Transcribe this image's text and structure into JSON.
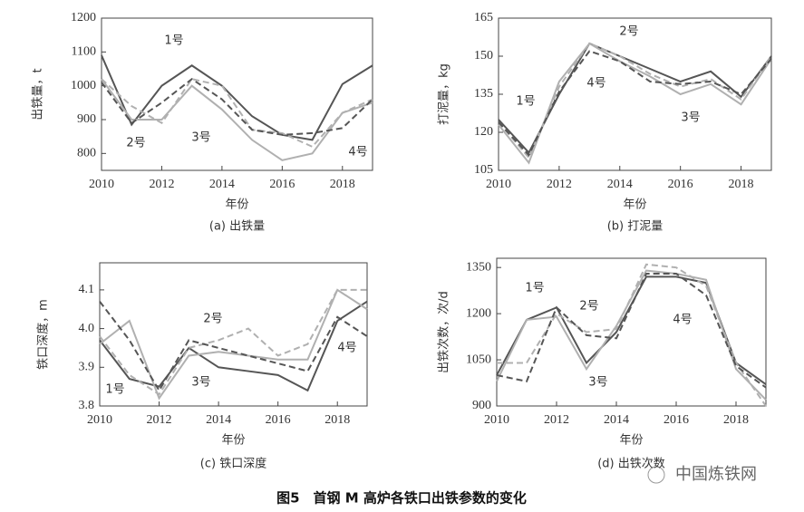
{
  "chart_data": [
    {
      "type": "line",
      "title": "(a) 出铁量",
      "xlabel": "年份",
      "ylabel": "出铁量，t",
      "x": [
        2010,
        2011,
        2012,
        2013,
        2014,
        2015,
        2016,
        2017,
        2018,
        2019
      ],
      "xlim": [
        2010,
        2019
      ],
      "xticks": [
        2010,
        2012,
        2014,
        2016,
        2018
      ],
      "ylim": [
        750,
        1200
      ],
      "yticks": [
        800,
        900,
        1000,
        1100,
        1200
      ],
      "series": [
        {
          "name": "1号",
          "color": "#555555",
          "dashed": false,
          "values": [
            1090,
            885,
            1000,
            1060,
            1000,
            910,
            855,
            840,
            1005,
            1060
          ]
        },
        {
          "name": "2号",
          "color": "#b0b0b0",
          "dashed": true,
          "values": [
            1020,
            940,
            890,
            1020,
            1000,
            870,
            860,
            820,
            920,
            960
          ]
        },
        {
          "name": "3号",
          "color": "#b0b0b0",
          "dashed": false,
          "values": [
            1020,
            900,
            900,
            1000,
            930,
            840,
            780,
            800,
            920,
            950
          ]
        },
        {
          "name": "4号",
          "color": "#555555",
          "dashed": true,
          "values": [
            1010,
            890,
            950,
            1020,
            960,
            870,
            855,
            860,
            875,
            960
          ]
        }
      ]
    },
    {
      "type": "line",
      "title": "(b) 打泥量",
      "xlabel": "年份",
      "ylabel": "打泥量，kg",
      "x": [
        2010,
        2011,
        2012,
        2013,
        2014,
        2015,
        2016,
        2017,
        2018,
        2019
      ],
      "xlim": [
        2010,
        2019
      ],
      "xticks": [
        2010,
        2012,
        2014,
        2016,
        2018
      ],
      "ylim": [
        105,
        165
      ],
      "yticks": [
        105,
        120,
        135,
        150,
        165
      ],
      "series": [
        {
          "name": "1号",
          "color": "#555555",
          "dashed": false,
          "values": [
            125,
            112,
            135,
            155,
            150,
            145,
            140,
            144,
            134,
            150
          ]
        },
        {
          "name": "2号",
          "color": "#b0b0b0",
          "dashed": true,
          "values": [
            124,
            110,
            138,
            155,
            150,
            143,
            138,
            141,
            133,
            150
          ]
        },
        {
          "name": "3号",
          "color": "#b0b0b0",
          "dashed": false,
          "values": [
            123,
            108,
            140,
            155,
            148,
            142,
            135,
            139,
            131,
            149
          ]
        },
        {
          "name": "4号",
          "color": "#555555",
          "dashed": true,
          "values": [
            124,
            111,
            136,
            152,
            148,
            140,
            139,
            140,
            135,
            149
          ]
        }
      ]
    },
    {
      "type": "line",
      "title": "(c) 铁口深度",
      "xlabel": "年份",
      "ylabel": "铁口深度，m",
      "x": [
        2010,
        2011,
        2012,
        2013,
        2014,
        2015,
        2016,
        2017,
        2018,
        2019
      ],
      "xlim": [
        2010,
        2019
      ],
      "xticks": [
        2010,
        2012,
        2014,
        2016,
        2018
      ],
      "ylim": [
        3.8,
        4.17
      ],
      "yticks": [
        3.8,
        3.9,
        {
          "value": 4,
          "label": "4.0"
        },
        4.1
      ],
      "series": [
        {
          "name": "1号",
          "color": "#555555",
          "dashed": false,
          "values": [
            3.97,
            3.87,
            3.85,
            3.95,
            3.9,
            3.89,
            3.88,
            3.84,
            4.02,
            4.07
          ]
        },
        {
          "name": "2号",
          "color": "#b0b0b0",
          "dashed": true,
          "values": [
            3.98,
            3.88,
            3.83,
            3.95,
            3.97,
            4.0,
            3.93,
            3.96,
            4.1,
            4.1
          ]
        },
        {
          "name": "3号",
          "color": "#b0b0b0",
          "dashed": false,
          "values": [
            3.96,
            4.02,
            3.82,
            3.93,
            3.94,
            3.93,
            3.92,
            3.92,
            4.1,
            4.05
          ]
        },
        {
          "name": "4号",
          "color": "#555555",
          "dashed": true,
          "values": [
            4.07,
            3.97,
            3.84,
            3.97,
            3.95,
            3.93,
            3.91,
            3.89,
            4.03,
            3.98
          ]
        }
      ]
    },
    {
      "type": "line",
      "title": "(d) 出铁次数",
      "xlabel": "年份",
      "ylabel": "出铁次数，次/d",
      "x": [
        2010,
        2011,
        2012,
        2013,
        2014,
        2015,
        2016,
        2017,
        2018,
        2019
      ],
      "xlim": [
        2010,
        2019
      ],
      "xticks": [
        2010,
        2012,
        2014,
        2016,
        2018
      ],
      "ylim": [
        900,
        1380
      ],
      "yticks": [
        900,
        1050,
        1200,
        1350
      ],
      "series": [
        {
          "name": "1号",
          "color": "#555555",
          "dashed": false,
          "values": [
            1000,
            1180,
            1220,
            1040,
            1140,
            1320,
            1320,
            1300,
            1040,
            970
          ]
        },
        {
          "name": "2号",
          "color": "#b0b0b0",
          "dashed": true,
          "values": [
            1040,
            1040,
            1200,
            1140,
            1150,
            1360,
            1350,
            1290,
            1040,
            900
          ]
        },
        {
          "name": "3号",
          "color": "#b0b0b0",
          "dashed": false,
          "values": [
            980,
            1180,
            1190,
            1020,
            1160,
            1340,
            1330,
            1310,
            1020,
            920
          ]
        },
        {
          "name": "4号",
          "color": "#555555",
          "dashed": true,
          "values": [
            1000,
            980,
            1220,
            1130,
            1120,
            1330,
            1330,
            1260,
            1030,
            960
          ]
        }
      ]
    }
  ],
  "caption": "图5　首钢 M 高炉各铁口出铁参数的变化",
  "watermark": "中国炼铁网"
}
